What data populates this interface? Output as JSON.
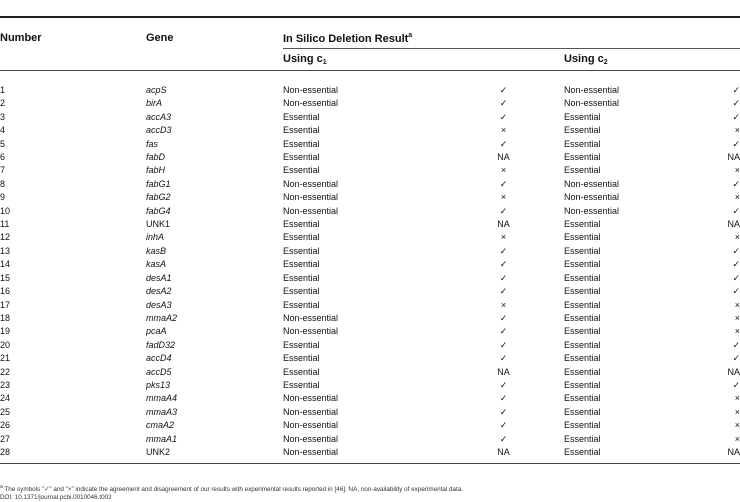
{
  "header": {
    "col_number": "Number",
    "col_gene": "Gene",
    "col_result": "In Silico Deletion Result",
    "col_result_note": "a",
    "sub_c1_prefix": "Using c",
    "sub_c1_index": "1",
    "sub_c2_prefix": "Using c",
    "sub_c2_index": "2"
  },
  "rows": [
    {
      "number": "1",
      "gene": "acpS",
      "c1_result": "Non-essential",
      "c1_mark": "✓",
      "c2_result": "Non-essential",
      "c2_mark": "✓",
      "gene_italic": true
    },
    {
      "number": "2",
      "gene": "birA",
      "c1_result": "Non-essential",
      "c1_mark": "✓",
      "c2_result": "Non-essential",
      "c2_mark": "✓",
      "gene_italic": true
    },
    {
      "number": "3",
      "gene": "accA3",
      "c1_result": "Essential",
      "c1_mark": "✓",
      "c2_result": "Essential",
      "c2_mark": "✓",
      "gene_italic": true
    },
    {
      "number": "4",
      "gene": "accD3",
      "c1_result": "Essential",
      "c1_mark": "×",
      "c2_result": "Essential",
      "c2_mark": "×",
      "gene_italic": true
    },
    {
      "number": "5",
      "gene": "fas",
      "c1_result": "Essential",
      "c1_mark": "✓",
      "c2_result": "Essential",
      "c2_mark": "✓",
      "gene_italic": true
    },
    {
      "number": "6",
      "gene": "fabD",
      "c1_result": "Essential",
      "c1_mark": "NA",
      "c2_result": "Essential",
      "c2_mark": "NA",
      "gene_italic": true
    },
    {
      "number": "7",
      "gene": "fabH",
      "c1_result": "Essential",
      "c1_mark": "×",
      "c2_result": "Essential",
      "c2_mark": "×",
      "gene_italic": true
    },
    {
      "number": "8",
      "gene": "fabG1",
      "c1_result": "Non-essential",
      "c1_mark": "✓",
      "c2_result": "Non-essential",
      "c2_mark": "✓",
      "gene_italic": true
    },
    {
      "number": "9",
      "gene": "fabG2",
      "c1_result": "Non-essential",
      "c1_mark": "×",
      "c2_result": "Non-essential",
      "c2_mark": "×",
      "gene_italic": true
    },
    {
      "number": "10",
      "gene": "fabG4",
      "c1_result": "Non-essential",
      "c1_mark": "✓",
      "c2_result": "Non-essential",
      "c2_mark": "✓",
      "gene_italic": true
    },
    {
      "number": "11",
      "gene": "UNK1",
      "c1_result": "Essential",
      "c1_mark": "NA",
      "c2_result": "Essential",
      "c2_mark": "NA",
      "gene_italic": false
    },
    {
      "number": "12",
      "gene": "inhA",
      "c1_result": "Essential",
      "c1_mark": "×",
      "c2_result": "Essential",
      "c2_mark": "×",
      "gene_italic": true
    },
    {
      "number": "13",
      "gene": "kasB",
      "c1_result": "Essential",
      "c1_mark": "✓",
      "c2_result": "Essential",
      "c2_mark": "✓",
      "gene_italic": true
    },
    {
      "number": "14",
      "gene": "kasA",
      "c1_result": "Essential",
      "c1_mark": "✓",
      "c2_result": "Essential",
      "c2_mark": "✓",
      "gene_italic": true
    },
    {
      "number": "15",
      "gene": "desA1",
      "c1_result": "Essential",
      "c1_mark": "✓",
      "c2_result": "Essential",
      "c2_mark": "✓",
      "gene_italic": true
    },
    {
      "number": "16",
      "gene": "desA2",
      "c1_result": "Essential",
      "c1_mark": "✓",
      "c2_result": "Essential",
      "c2_mark": "✓",
      "gene_italic": true
    },
    {
      "number": "17",
      "gene": "desA3",
      "c1_result": "Essential",
      "c1_mark": "×",
      "c2_result": "Essential",
      "c2_mark": "×",
      "gene_italic": true
    },
    {
      "number": "18",
      "gene": "mmaA2",
      "c1_result": "Non-essential",
      "c1_mark": "✓",
      "c2_result": "Essential",
      "c2_mark": "×",
      "gene_italic": true
    },
    {
      "number": "19",
      "gene": "pcaA",
      "c1_result": "Non-essential",
      "c1_mark": "✓",
      "c2_result": "Essential",
      "c2_mark": "×",
      "gene_italic": true
    },
    {
      "number": "20",
      "gene": "fadD32",
      "c1_result": "Essential",
      "c1_mark": "✓",
      "c2_result": "Essential",
      "c2_mark": "✓",
      "gene_italic": true
    },
    {
      "number": "21",
      "gene": "accD4",
      "c1_result": "Essential",
      "c1_mark": "✓",
      "c2_result": "Essential",
      "c2_mark": "✓",
      "gene_italic": true
    },
    {
      "number": "22",
      "gene": "accD5",
      "c1_result": "Essential",
      "c1_mark": "NA",
      "c2_result": "Essential",
      "c2_mark": "NA",
      "gene_italic": true
    },
    {
      "number": "23",
      "gene": "pks13",
      "c1_result": "Essential",
      "c1_mark": "✓",
      "c2_result": "Essential",
      "c2_mark": "✓",
      "gene_italic": true
    },
    {
      "number": "24",
      "gene": "mmaA4",
      "c1_result": "Non-essential",
      "c1_mark": "✓",
      "c2_result": "Essential",
      "c2_mark": "×",
      "gene_italic": true
    },
    {
      "number": "25",
      "gene": "mmaA3",
      "c1_result": "Non-essential",
      "c1_mark": "✓",
      "c2_result": "Essential",
      "c2_mark": "×",
      "gene_italic": true
    },
    {
      "number": "26",
      "gene": "cmaA2",
      "c1_result": "Non-essential",
      "c1_mark": "✓",
      "c2_result": "Essential",
      "c2_mark": "×",
      "gene_italic": true
    },
    {
      "number": "27",
      "gene": "mmaA1",
      "c1_result": "Non-essential",
      "c1_mark": "✓",
      "c2_result": "Essential",
      "c2_mark": "×",
      "gene_italic": true
    },
    {
      "number": "28",
      "gene": "UNK2",
      "c1_result": "Non-essential",
      "c1_mark": "NA",
      "c2_result": "Essential",
      "c2_mark": "NA",
      "gene_italic": false
    }
  ],
  "footnote": {
    "marker": "a",
    "text": "The symbols \"✓\" and \"×\" indicate the agreement and disagreement of our results with experimental results reported in [46]. NA, non-availability of experimental data.",
    "doi": "DOI: 10.1371/journal.pcbi.0010046.t002"
  }
}
